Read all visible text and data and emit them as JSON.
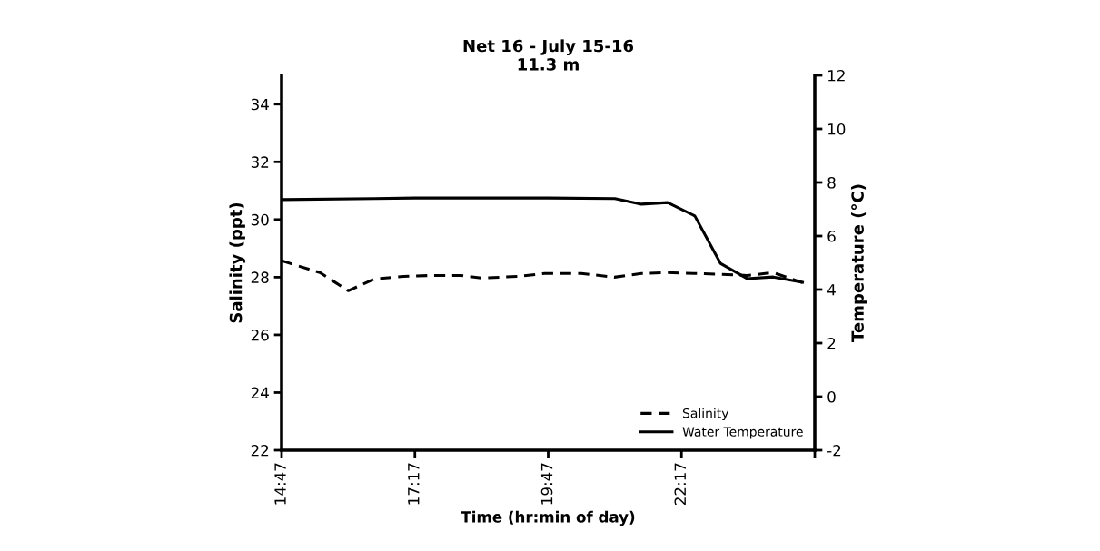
{
  "chart_data": {
    "type": "line",
    "title": "Net 16 - July 15-16\n11.3 m",
    "xlabel": "Time (hr:min of day)",
    "ylabel": "Salinity (ppt)",
    "y2label": "Temperature (°C)",
    "series": [
      {
        "name": "Salinity",
        "color": "#000000",
        "line_style": "dashed",
        "x": [
          14.78,
          15.5,
          16.03,
          16.52,
          17.07,
          17.6,
          18.14,
          18.53,
          19.21,
          19.72,
          20.4,
          21.02,
          21.53,
          22.02,
          22.53,
          23.01,
          23.51,
          24.0,
          24.55
        ],
        "values": [
          28.57,
          28.16,
          27.53,
          27.94,
          28.03,
          28.06,
          28.06,
          27.97,
          28.03,
          28.13,
          28.13,
          28.0,
          28.13,
          28.16,
          28.13,
          28.1,
          28.06,
          28.16,
          27.81
        ]
      },
      {
        "name": "Water Temperature",
        "color": "#000000",
        "line_style": "solid",
        "axis": "y2",
        "x": [
          14.78,
          16.52,
          17.28,
          19.78,
          21.03,
          21.53,
          22.02,
          22.53,
          23.01,
          23.51,
          24.0,
          24.55
        ],
        "values": [
          7.36,
          7.4,
          7.42,
          7.42,
          7.4,
          7.19,
          7.25,
          6.75,
          4.98,
          4.41,
          4.47,
          4.27
        ]
      }
    ],
    "xlim": [
      14.78,
      24.78
    ],
    "xticks": [
      {
        "value": 14.78,
        "label": "14:47"
      },
      {
        "value": 17.28,
        "label": "17:17"
      },
      {
        "value": 19.78,
        "label": "19:47"
      },
      {
        "value": 22.28,
        "label": "22:17"
      },
      {
        "value": 24.78,
        "label": null
      }
    ],
    "ylim": [
      22,
      35
    ],
    "yticks": [
      22,
      24,
      26,
      28,
      30,
      32,
      34
    ],
    "y2lim": [
      -2,
      12
    ],
    "y2ticks": [
      -2,
      0,
      2,
      4,
      6,
      8,
      10,
      12
    ],
    "grid": false,
    "legend": "bottom right",
    "marker": "none"
  }
}
